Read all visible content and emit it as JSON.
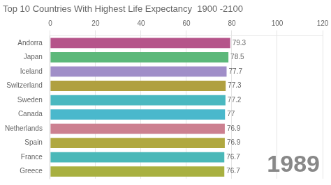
{
  "chart_data": {
    "type": "bar",
    "orientation": "horizontal",
    "title": "Top 10 Countries With Highest Life Expectancy  1900 -2100",
    "annotation": "1989",
    "categories": [
      "Andorra",
      "Japan",
      "Iceland",
      "Switzerland",
      "Sweden",
      "Canada",
      "Netherlands",
      "Spain",
      "France",
      "Greece"
    ],
    "values": [
      79.3,
      78.5,
      77.7,
      77.3,
      77.2,
      77.0,
      76.9,
      76.9,
      76.7,
      76.7
    ],
    "colors": [
      "#b5548a",
      "#5cb87a",
      "#a08ec8",
      "#b0a040",
      "#4ab8c0",
      "#4ab8cc",
      "#cc8090",
      "#b0a840",
      "#4ab8b8",
      "#a8b040"
    ],
    "xlim": [
      0,
      120
    ],
    "xticks": [
      0,
      20,
      40,
      60,
      80,
      100,
      120
    ],
    "grid": true,
    "data_labels": true
  }
}
